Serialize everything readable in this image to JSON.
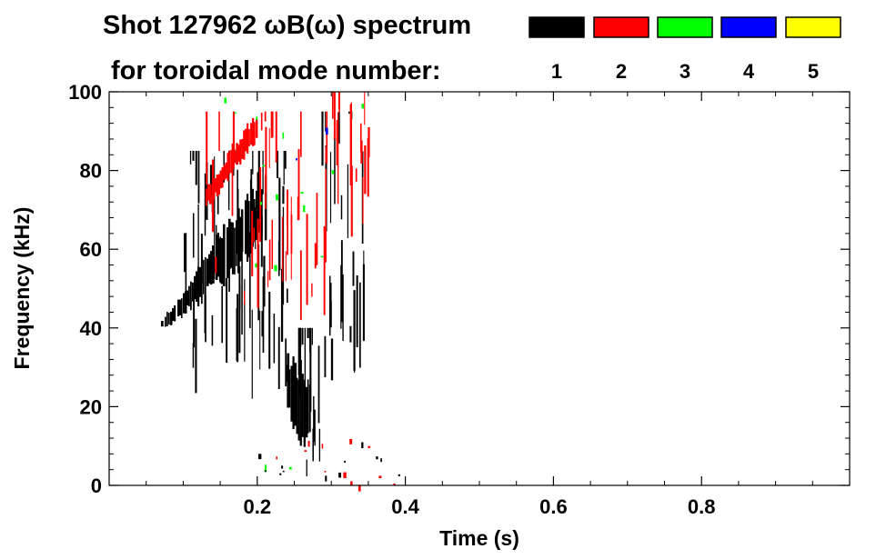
{
  "chart_data": {
    "type": "heatmap",
    "title_line1": "Shot 127962 ωB(ω) spectrum",
    "title_line2": "for toroidal mode number:",
    "xlabel": "Time (s)",
    "ylabel": "Frequency (kHz)",
    "xlim": [
      0.0,
      1.0
    ],
    "ylim": [
      0,
      100
    ],
    "x_ticks": [
      0.2,
      0.4,
      0.6,
      0.8
    ],
    "x_tick_labels": [
      "0.2",
      "0.4",
      "0.6",
      "0.8"
    ],
    "y_ticks": [
      0,
      20,
      40,
      60,
      80,
      100
    ],
    "y_tick_labels": [
      "0",
      "20",
      "40",
      "60",
      "80",
      "100"
    ],
    "legend": {
      "placement": "top",
      "entries": [
        {
          "label": "1",
          "color": "#000000"
        },
        {
          "label": "2",
          "color": "#ff0000"
        },
        {
          "label": "3",
          "color": "#00ff00"
        },
        {
          "label": "4",
          "color": "#0000ff"
        },
        {
          "label": "5",
          "color": "#ffff00"
        }
      ]
    },
    "features": [
      {
        "mode": "1",
        "kind": "band",
        "t": [
          0.07,
          0.09,
          0.11,
          0.13,
          0.15,
          0.17,
          0.19,
          0.21
        ],
        "f_center": [
          41,
          44,
          49,
          54,
          58,
          62,
          66,
          70
        ],
        "halfwidth": [
          1.5,
          3,
          5,
          7,
          8,
          9,
          9,
          9
        ],
        "density": 0.9
      },
      {
        "mode": "1",
        "kind": "streaks",
        "t": [
          0.1,
          0.24
        ],
        "f": [
          22,
          85
        ],
        "count": 70
      },
      {
        "mode": "1",
        "kind": "band",
        "t": [
          0.24,
          0.255,
          0.27
        ],
        "f_center": [
          25,
          22,
          18
        ],
        "halfwidth": [
          10,
          12,
          10
        ],
        "density": 0.85
      },
      {
        "mode": "1",
        "kind": "streaks",
        "t": [
          0.255,
          0.285
        ],
        "f": [
          0,
          40
        ],
        "count": 16
      },
      {
        "mode": "1",
        "kind": "streaks",
        "t": [
          0.285,
          0.345
        ],
        "f": [
          25,
          95
        ],
        "count": 28
      },
      {
        "mode": "2",
        "kind": "band",
        "t": [
          0.13,
          0.15,
          0.17,
          0.19,
          0.205
        ],
        "f_center": [
          73,
          78,
          84,
          89,
          93
        ],
        "halfwidth": [
          3,
          3.5,
          4,
          4.5,
          4
        ],
        "density": 0.9
      },
      {
        "mode": "2",
        "kind": "streaks",
        "t": [
          0.13,
          0.3
        ],
        "f": [
          40,
          95
        ],
        "count": 40
      },
      {
        "mode": "2",
        "kind": "streaks",
        "t": [
          0.3,
          0.35
        ],
        "f": [
          60,
          100
        ],
        "count": 18
      },
      {
        "mode": "2",
        "kind": "scatter",
        "t": [
          0.22,
          0.4
        ],
        "f": [
          0,
          12
        ],
        "count": 12
      },
      {
        "mode": "3",
        "kind": "scatter",
        "t": [
          0.13,
          0.35
        ],
        "f": [
          55,
          100
        ],
        "count": 14
      },
      {
        "mode": "3",
        "kind": "scatter",
        "t": [
          0.2,
          0.25
        ],
        "f": [
          0,
          6
        ],
        "count": 3
      },
      {
        "mode": "4",
        "kind": "scatter",
        "t": [
          0.24,
          0.3
        ],
        "f": [
          80,
          92
        ],
        "count": 2
      },
      {
        "mode": "1",
        "kind": "scatter",
        "t": [
          0.2,
          0.4
        ],
        "f": [
          0,
          12
        ],
        "count": 12
      }
    ]
  }
}
